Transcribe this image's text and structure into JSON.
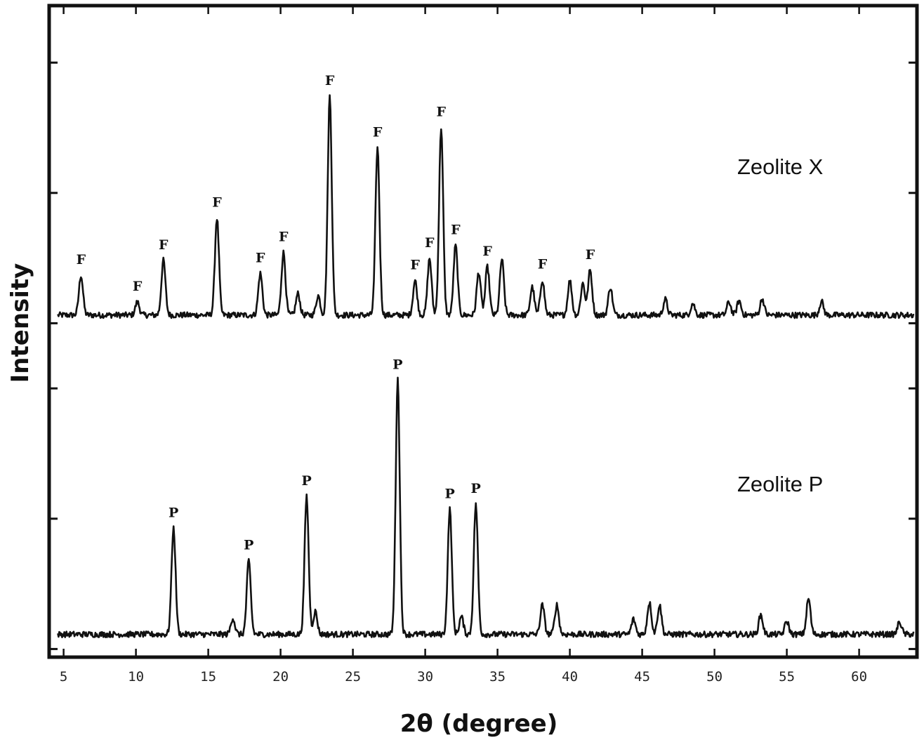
{
  "chart_data": {
    "type": "line",
    "title": "",
    "xlabel": "2θ (degree)",
    "ylabel": "Intensity",
    "xlim": [
      4,
      64
    ],
    "ylim": [
      0,
      100
    ],
    "x_ticks": [
      5,
      10,
      15,
      20,
      25,
      30,
      35,
      40,
      45,
      50,
      55,
      60
    ],
    "x_tick_labels": [
      "5",
      "10",
      "15",
      "20",
      "25",
      "30",
      "35",
      "40",
      "45",
      "50",
      "55",
      "60"
    ],
    "y_tick_values": [
      1.25,
      21.25,
      41.25,
      51.25,
      71.25,
      91.25
    ],
    "y_ticks_labeled": false,
    "grid": false,
    "series": [
      {
        "name": "Zeolite X",
        "baseline": 52.5,
        "peak_marker": "F",
        "peaks": [
          {
            "x": 6.2,
            "y": 58.6,
            "marker": "F"
          },
          {
            "x": 10.1,
            "y": 54.5,
            "marker": "F"
          },
          {
            "x": 11.9,
            "y": 60.9,
            "marker": "F"
          },
          {
            "x": 15.6,
            "y": 67.4,
            "marker": "F"
          },
          {
            "x": 18.6,
            "y": 58.9,
            "marker": "F"
          },
          {
            "x": 20.2,
            "y": 62.1,
            "marker": "F"
          },
          {
            "x": 23.4,
            "y": 86.1,
            "marker": "F"
          },
          {
            "x": 26.7,
            "y": 78.2,
            "marker": "F"
          },
          {
            "x": 29.3,
            "y": 57.8,
            "marker": "F"
          },
          {
            "x": 30.3,
            "y": 61.2,
            "marker": "F"
          },
          {
            "x": 31.1,
            "y": 81.3,
            "marker": "F"
          },
          {
            "x": 32.1,
            "y": 63.2,
            "marker": "F"
          },
          {
            "x": 34.3,
            "y": 59.9,
            "marker": "F"
          },
          {
            "x": 38.1,
            "y": 57.9,
            "marker": "F"
          },
          {
            "x": 41.4,
            "y": 59.4,
            "marker": "F"
          },
          {
            "x": 21.2,
            "y": 55.8
          },
          {
            "x": 22.6,
            "y": 55.5
          },
          {
            "x": 33.7,
            "y": 59.1
          },
          {
            "x": 35.3,
            "y": 61.1
          },
          {
            "x": 37.4,
            "y": 56.8
          },
          {
            "x": 40.0,
            "y": 57.8
          },
          {
            "x": 40.9,
            "y": 57.4
          },
          {
            "x": 42.8,
            "y": 56.8
          },
          {
            "x": 46.6,
            "y": 54.9
          },
          {
            "x": 48.5,
            "y": 54.3
          },
          {
            "x": 51.0,
            "y": 54.5
          },
          {
            "x": 51.7,
            "y": 54.7
          },
          {
            "x": 53.3,
            "y": 55.0
          },
          {
            "x": 57.4,
            "y": 54.6
          }
        ]
      },
      {
        "name": "Zeolite P",
        "baseline": 3.5,
        "peak_marker": "P",
        "peaks": [
          {
            "x": 12.6,
            "y": 19.8,
            "marker": "P"
          },
          {
            "x": 17.8,
            "y": 14.8,
            "marker": "P"
          },
          {
            "x": 21.8,
            "y": 24.7,
            "marker": "P"
          },
          {
            "x": 28.1,
            "y": 42.5,
            "marker": "P"
          },
          {
            "x": 31.7,
            "y": 22.7,
            "marker": "P"
          },
          {
            "x": 33.5,
            "y": 23.5,
            "marker": "P"
          },
          {
            "x": 16.7,
            "y": 6.0
          },
          {
            "x": 22.4,
            "y": 7.0
          },
          {
            "x": 32.5,
            "y": 6.2
          },
          {
            "x": 38.1,
            "y": 8.0
          },
          {
            "x": 39.1,
            "y": 8.0
          },
          {
            "x": 44.4,
            "y": 5.8
          },
          {
            "x": 45.5,
            "y": 8.4
          },
          {
            "x": 46.2,
            "y": 8.0
          },
          {
            "x": 53.2,
            "y": 6.5
          },
          {
            "x": 55.0,
            "y": 5.5
          },
          {
            "x": 56.5,
            "y": 9.0
          },
          {
            "x": 62.8,
            "y": 5.4
          }
        ]
      }
    ]
  }
}
